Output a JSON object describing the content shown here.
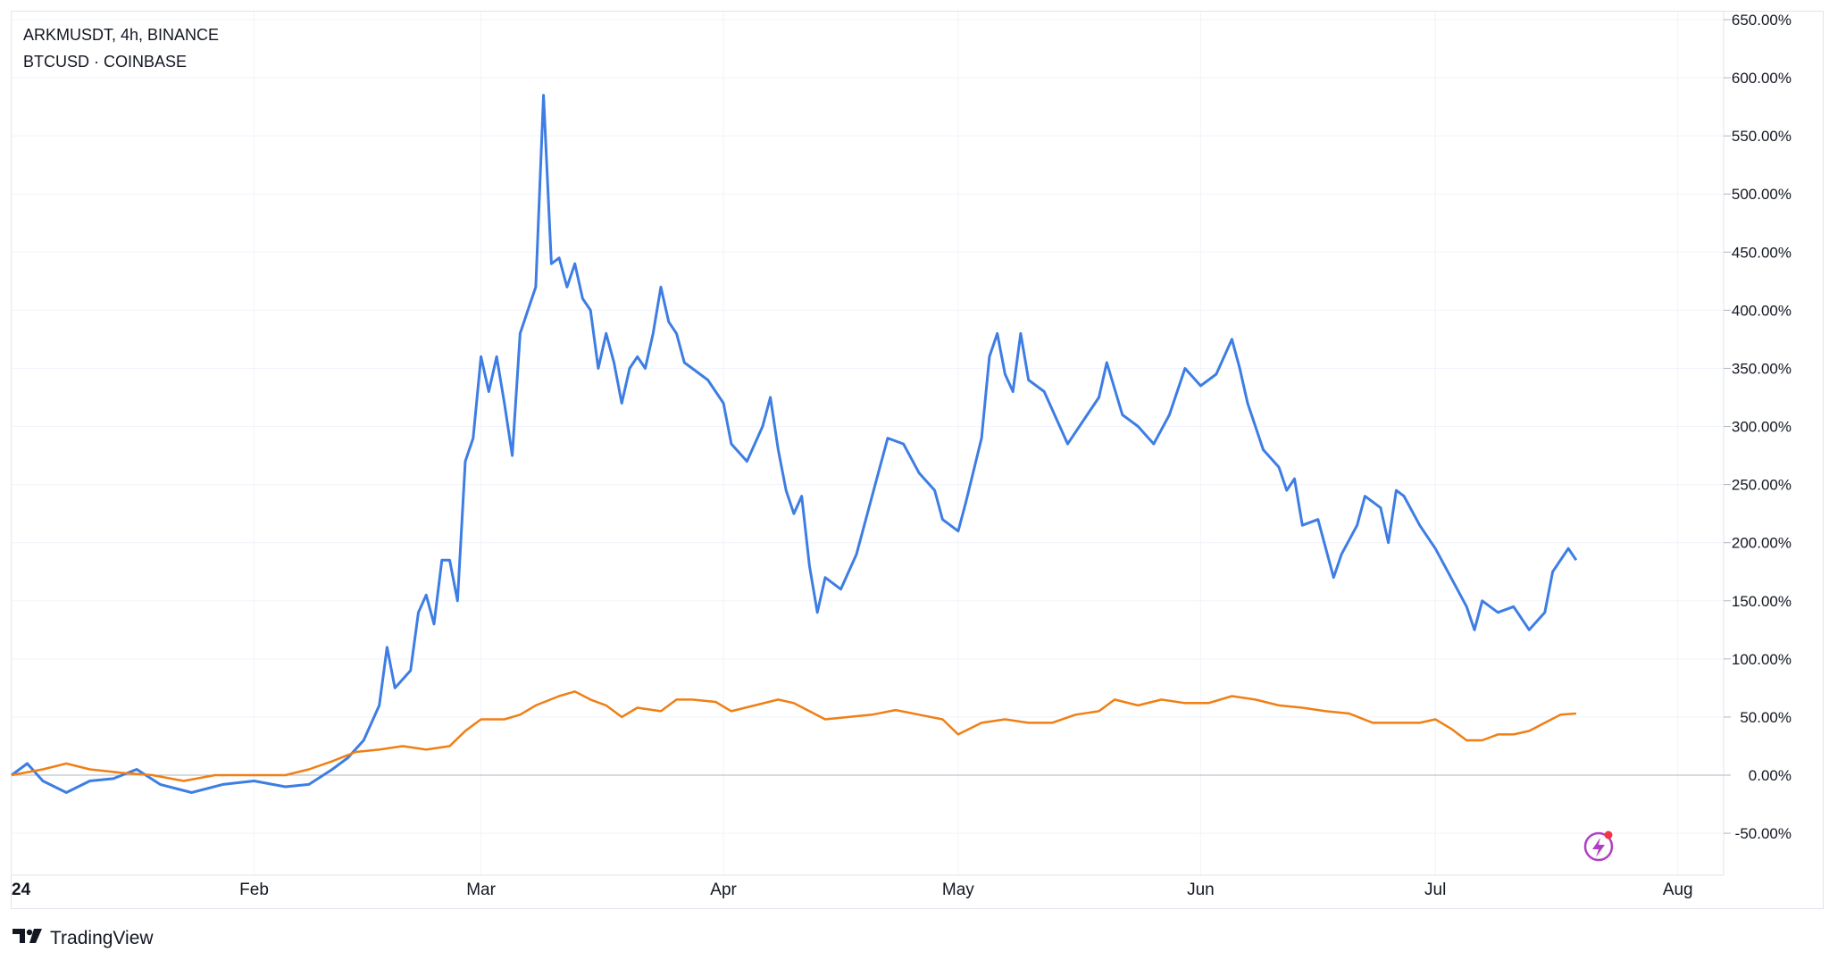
{
  "legend": {
    "main": "ARKMUSDT, 4h, BINANCE",
    "compare": "BTCUSD · COINBASE"
  },
  "brand": {
    "name": "TradingView"
  },
  "colors": {
    "arkm": "#3d7de4",
    "btc": "#f07f14",
    "grid": "#f0f3fa",
    "zero_line": "#b2b5be",
    "lightning": "#b03ec5"
  },
  "icons": {
    "lightning": "lightning-icon",
    "brand_logo": "tradingview-logo-icon"
  },
  "chart_data": {
    "type": "line",
    "y_unit": "%",
    "ylim": [
      -60,
      650
    ],
    "x_range": [
      "2024-01-01",
      "2024-08-04"
    ],
    "y_ticks": [
      "650.00%",
      "600.00%",
      "550.00%",
      "500.00%",
      "450.00%",
      "400.00%",
      "350.00%",
      "300.00%",
      "250.00%",
      "200.00%",
      "150.00%",
      "100.00%",
      "50.00%",
      "0.00%",
      "-50.00%"
    ],
    "x_ticks": [
      {
        "date": "2024-01-01",
        "label": "24"
      },
      {
        "date": "2024-02-01",
        "label": "Feb"
      },
      {
        "date": "2024-03-01",
        "label": "Mar"
      },
      {
        "date": "2024-04-01",
        "label": "Apr"
      },
      {
        "date": "2024-05-01",
        "label": "May"
      },
      {
        "date": "2024-06-01",
        "label": "Jun"
      },
      {
        "date": "2024-07-01",
        "label": "Jul"
      },
      {
        "date": "2024-08-01",
        "label": "Aug"
      }
    ],
    "grid": true,
    "series": [
      {
        "name": "ARKMUSDT",
        "points": [
          [
            "2024-01-01",
            0
          ],
          [
            "2024-01-03",
            10
          ],
          [
            "2024-01-05",
            -5
          ],
          [
            "2024-01-08",
            -15
          ],
          [
            "2024-01-11",
            -5
          ],
          [
            "2024-01-14",
            -3
          ],
          [
            "2024-01-17",
            5
          ],
          [
            "2024-01-20",
            -8
          ],
          [
            "2024-01-24",
            -15
          ],
          [
            "2024-01-28",
            -8
          ],
          [
            "2024-02-01",
            -5
          ],
          [
            "2024-02-05",
            -10
          ],
          [
            "2024-02-08",
            -8
          ],
          [
            "2024-02-11",
            5
          ],
          [
            "2024-02-13",
            15
          ],
          [
            "2024-02-15",
            30
          ],
          [
            "2024-02-17",
            60
          ],
          [
            "2024-02-18",
            110
          ],
          [
            "2024-02-19",
            75
          ],
          [
            "2024-02-21",
            90
          ],
          [
            "2024-02-22",
            140
          ],
          [
            "2024-02-23",
            155
          ],
          [
            "2024-02-24",
            130
          ],
          [
            "2024-02-25",
            185
          ],
          [
            "2024-02-26",
            185
          ],
          [
            "2024-02-27",
            150
          ],
          [
            "2024-02-28",
            270
          ],
          [
            "2024-02-29",
            290
          ],
          [
            "2024-03-01",
            360
          ],
          [
            "2024-03-02",
            330
          ],
          [
            "2024-03-03",
            360
          ],
          [
            "2024-03-04",
            320
          ],
          [
            "2024-03-05",
            275
          ],
          [
            "2024-03-06",
            380
          ],
          [
            "2024-03-07",
            400
          ],
          [
            "2024-03-08",
            420
          ],
          [
            "2024-03-09",
            585
          ],
          [
            "2024-03-10",
            440
          ],
          [
            "2024-03-11",
            445
          ],
          [
            "2024-03-12",
            420
          ],
          [
            "2024-03-13",
            440
          ],
          [
            "2024-03-14",
            410
          ],
          [
            "2024-03-15",
            400
          ],
          [
            "2024-03-16",
            350
          ],
          [
            "2024-03-17",
            380
          ],
          [
            "2024-03-18",
            355
          ],
          [
            "2024-03-19",
            320
          ],
          [
            "2024-03-20",
            350
          ],
          [
            "2024-03-21",
            360
          ],
          [
            "2024-03-22",
            350
          ],
          [
            "2024-03-23",
            380
          ],
          [
            "2024-03-24",
            420
          ],
          [
            "2024-03-25",
            390
          ],
          [
            "2024-03-26",
            380
          ],
          [
            "2024-03-27",
            355
          ],
          [
            "2024-03-28",
            350
          ],
          [
            "2024-03-30",
            340
          ],
          [
            "2024-04-01",
            320
          ],
          [
            "2024-04-02",
            285
          ],
          [
            "2024-04-04",
            270
          ],
          [
            "2024-04-06",
            300
          ],
          [
            "2024-04-07",
            325
          ],
          [
            "2024-04-08",
            280
          ],
          [
            "2024-04-09",
            245
          ],
          [
            "2024-04-10",
            225
          ],
          [
            "2024-04-11",
            240
          ],
          [
            "2024-04-12",
            180
          ],
          [
            "2024-04-13",
            140
          ],
          [
            "2024-04-14",
            170
          ],
          [
            "2024-04-16",
            160
          ],
          [
            "2024-04-18",
            190
          ],
          [
            "2024-04-20",
            240
          ],
          [
            "2024-04-22",
            290
          ],
          [
            "2024-04-24",
            285
          ],
          [
            "2024-04-26",
            260
          ],
          [
            "2024-04-28",
            245
          ],
          [
            "2024-04-29",
            220
          ],
          [
            "2024-05-01",
            210
          ],
          [
            "2024-05-02",
            235
          ],
          [
            "2024-05-04",
            290
          ],
          [
            "2024-05-05",
            360
          ],
          [
            "2024-05-06",
            380
          ],
          [
            "2024-05-07",
            345
          ],
          [
            "2024-05-08",
            330
          ],
          [
            "2024-05-09",
            380
          ],
          [
            "2024-05-10",
            340
          ],
          [
            "2024-05-12",
            330
          ],
          [
            "2024-05-14",
            300
          ],
          [
            "2024-05-15",
            285
          ],
          [
            "2024-05-17",
            305
          ],
          [
            "2024-05-19",
            325
          ],
          [
            "2024-05-20",
            355
          ],
          [
            "2024-05-22",
            310
          ],
          [
            "2024-05-24",
            300
          ],
          [
            "2024-05-26",
            285
          ],
          [
            "2024-05-28",
            310
          ],
          [
            "2024-05-30",
            350
          ],
          [
            "2024-06-01",
            335
          ],
          [
            "2024-06-03",
            345
          ],
          [
            "2024-06-05",
            375
          ],
          [
            "2024-06-06",
            350
          ],
          [
            "2024-06-07",
            320
          ],
          [
            "2024-06-09",
            280
          ],
          [
            "2024-06-11",
            265
          ],
          [
            "2024-06-12",
            245
          ],
          [
            "2024-06-13",
            255
          ],
          [
            "2024-06-14",
            215
          ],
          [
            "2024-06-16",
            220
          ],
          [
            "2024-06-18",
            170
          ],
          [
            "2024-06-19",
            190
          ],
          [
            "2024-06-21",
            215
          ],
          [
            "2024-06-22",
            240
          ],
          [
            "2024-06-24",
            230
          ],
          [
            "2024-06-25",
            200
          ],
          [
            "2024-06-26",
            245
          ],
          [
            "2024-06-27",
            240
          ],
          [
            "2024-06-29",
            215
          ],
          [
            "2024-06-30",
            205
          ],
          [
            "2024-07-01",
            195
          ],
          [
            "2024-07-03",
            170
          ],
          [
            "2024-07-05",
            145
          ],
          [
            "2024-07-06",
            125
          ],
          [
            "2024-07-07",
            150
          ],
          [
            "2024-07-09",
            140
          ],
          [
            "2024-07-11",
            145
          ],
          [
            "2024-07-13",
            125
          ],
          [
            "2024-07-15",
            140
          ],
          [
            "2024-07-16",
            175
          ],
          [
            "2024-07-18",
            195
          ],
          [
            "2024-07-19",
            185
          ]
        ]
      },
      {
        "name": "BTCUSD",
        "points": [
          [
            "2024-01-01",
            0
          ],
          [
            "2024-01-05",
            5
          ],
          [
            "2024-01-08",
            10
          ],
          [
            "2024-01-11",
            5
          ],
          [
            "2024-01-15",
            2
          ],
          [
            "2024-01-19",
            0
          ],
          [
            "2024-01-23",
            -5
          ],
          [
            "2024-01-27",
            0
          ],
          [
            "2024-02-01",
            0
          ],
          [
            "2024-02-05",
            0
          ],
          [
            "2024-02-08",
            5
          ],
          [
            "2024-02-11",
            12
          ],
          [
            "2024-02-14",
            20
          ],
          [
            "2024-02-17",
            22
          ],
          [
            "2024-02-20",
            25
          ],
          [
            "2024-02-23",
            22
          ],
          [
            "2024-02-26",
            25
          ],
          [
            "2024-02-28",
            38
          ],
          [
            "2024-03-01",
            48
          ],
          [
            "2024-03-04",
            48
          ],
          [
            "2024-03-06",
            52
          ],
          [
            "2024-03-08",
            60
          ],
          [
            "2024-03-11",
            68
          ],
          [
            "2024-03-13",
            72
          ],
          [
            "2024-03-15",
            65
          ],
          [
            "2024-03-17",
            60
          ],
          [
            "2024-03-19",
            50
          ],
          [
            "2024-03-21",
            58
          ],
          [
            "2024-03-24",
            55
          ],
          [
            "2024-03-26",
            65
          ],
          [
            "2024-03-28",
            65
          ],
          [
            "2024-03-31",
            63
          ],
          [
            "2024-04-02",
            55
          ],
          [
            "2024-04-05",
            60
          ],
          [
            "2024-04-08",
            65
          ],
          [
            "2024-04-10",
            62
          ],
          [
            "2024-04-12",
            55
          ],
          [
            "2024-04-14",
            48
          ],
          [
            "2024-04-17",
            50
          ],
          [
            "2024-04-20",
            52
          ],
          [
            "2024-04-23",
            56
          ],
          [
            "2024-04-26",
            52
          ],
          [
            "2024-04-29",
            48
          ],
          [
            "2024-05-01",
            35
          ],
          [
            "2024-05-04",
            45
          ],
          [
            "2024-05-07",
            48
          ],
          [
            "2024-05-10",
            45
          ],
          [
            "2024-05-13",
            45
          ],
          [
            "2024-05-16",
            52
          ],
          [
            "2024-05-19",
            55
          ],
          [
            "2024-05-21",
            65
          ],
          [
            "2024-05-24",
            60
          ],
          [
            "2024-05-27",
            65
          ],
          [
            "2024-05-30",
            62
          ],
          [
            "2024-06-02",
            62
          ],
          [
            "2024-06-05",
            68
          ],
          [
            "2024-06-08",
            65
          ],
          [
            "2024-06-11",
            60
          ],
          [
            "2024-06-14",
            58
          ],
          [
            "2024-06-17",
            55
          ],
          [
            "2024-06-20",
            53
          ],
          [
            "2024-06-23",
            45
          ],
          [
            "2024-06-26",
            45
          ],
          [
            "2024-06-29",
            45
          ],
          [
            "2024-07-01",
            48
          ],
          [
            "2024-07-03",
            40
          ],
          [
            "2024-07-05",
            30
          ],
          [
            "2024-07-07",
            30
          ],
          [
            "2024-07-09",
            35
          ],
          [
            "2024-07-11",
            35
          ],
          [
            "2024-07-13",
            38
          ],
          [
            "2024-07-15",
            45
          ],
          [
            "2024-07-17",
            52
          ],
          [
            "2024-07-19",
            53
          ]
        ]
      }
    ]
  }
}
